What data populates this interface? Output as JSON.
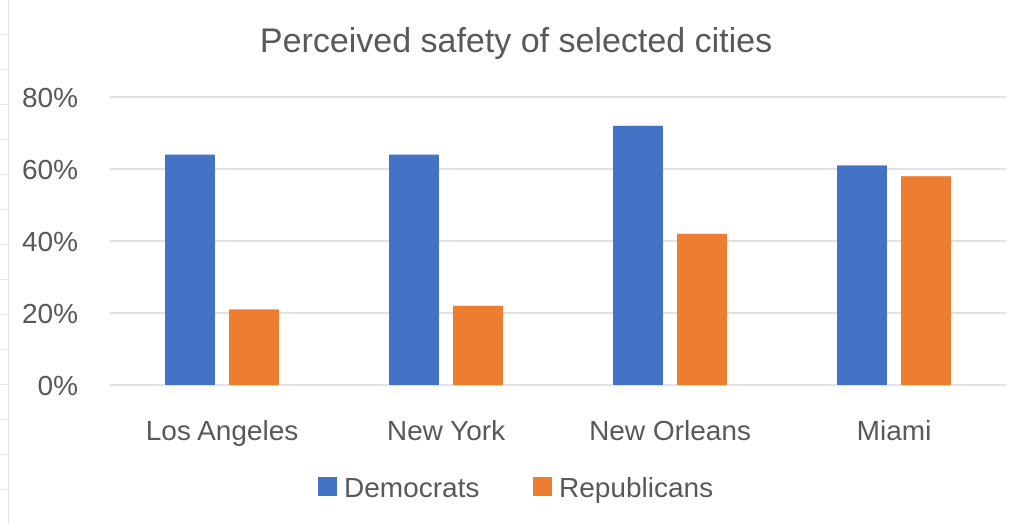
{
  "chart_data": {
    "type": "bar",
    "title": "Perceived safety of selected cities",
    "xlabel": "",
    "ylabel": "",
    "categories": [
      "Los Angeles",
      "New York",
      "New Orleans",
      "Miami"
    ],
    "series": [
      {
        "name": "Democrats",
        "values": [
          64,
          64,
          72,
          61
        ],
        "color": "#4472C4"
      },
      {
        "name": "Republicans",
        "values": [
          21,
          22,
          42,
          58
        ],
        "color": "#ED7D31"
      }
    ],
    "ylim": [
      0,
      80
    ],
    "yticks": [
      0,
      20,
      40,
      60,
      80
    ],
    "ytick_labels": [
      "0%",
      "20%",
      "40%",
      "60%",
      "80%"
    ],
    "value_format": "percent",
    "grid": true,
    "legend_position": "bottom"
  }
}
